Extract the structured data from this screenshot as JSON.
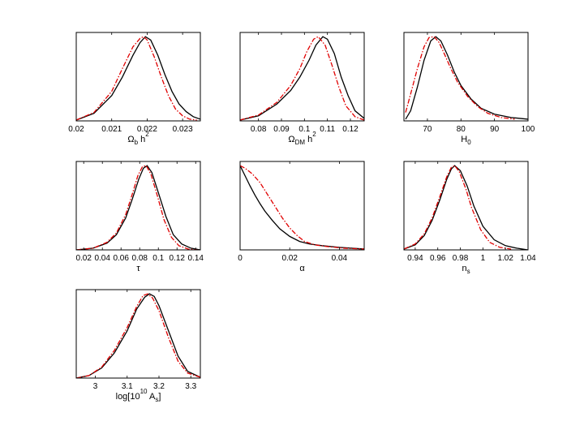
{
  "chart_data": [
    {
      "type": "line",
      "xlim": [
        0.02,
        0.0235
      ],
      "ylim": [
        0,
        1.05
      ],
      "xticks": [
        0.02,
        0.021,
        0.022,
        0.023
      ],
      "xtick_labels": [
        "0.02",
        "0.021",
        "0.022",
        "0.023"
      ],
      "xlabel_parts": [
        [
          "Ω",
          "n"
        ],
        [
          "b",
          "sub"
        ],
        [
          " h",
          "n"
        ],
        [
          "2",
          "sup"
        ]
      ],
      "series": [
        {
          "style": "solid",
          "color": "#000000",
          "x": [
            0.02,
            0.0205,
            0.021,
            0.0213,
            0.0216,
            0.0218,
            0.02195,
            0.0221,
            0.0223,
            0.0225,
            0.0227,
            0.0229,
            0.0231,
            0.0233,
            0.0235
          ],
          "y": [
            0.01,
            0.09,
            0.3,
            0.52,
            0.78,
            0.93,
            1.0,
            0.96,
            0.78,
            0.55,
            0.35,
            0.2,
            0.11,
            0.05,
            0.02
          ]
        },
        {
          "style": "dashdot",
          "color": "#e00000",
          "x": [
            0.02,
            0.0205,
            0.021,
            0.0213,
            0.0216,
            0.0218,
            0.0219,
            0.022,
            0.0222,
            0.0224,
            0.0226,
            0.0228,
            0.023,
            0.0232,
            0.0234
          ],
          "y": [
            0.01,
            0.1,
            0.35,
            0.62,
            0.88,
            0.98,
            1.0,
            0.96,
            0.76,
            0.52,
            0.3,
            0.14,
            0.06,
            0.02,
            0.01
          ]
        }
      ]
    },
    {
      "type": "line",
      "xlim": [
        0.072,
        0.126
      ],
      "ylim": [
        0,
        1.05
      ],
      "xticks": [
        0.08,
        0.09,
        0.1,
        0.11,
        0.12
      ],
      "xtick_labels": [
        "0.08",
        "0.09",
        "0.1",
        "0.11",
        "0.12"
      ],
      "xlabel_parts": [
        [
          "Ω",
          "n"
        ],
        [
          "DM",
          "sub"
        ],
        [
          " h",
          "n"
        ],
        [
          "2",
          "sup"
        ]
      ],
      "series": [
        {
          "style": "solid",
          "color": "#000000",
          "x": [
            0.072,
            0.08,
            0.088,
            0.094,
            0.098,
            0.102,
            0.105,
            0.108,
            0.11,
            0.113,
            0.116,
            0.119,
            0.122,
            0.126
          ],
          "y": [
            0.01,
            0.06,
            0.2,
            0.36,
            0.52,
            0.72,
            0.9,
            1.0,
            0.97,
            0.8,
            0.52,
            0.3,
            0.12,
            0.03
          ]
        },
        {
          "style": "dashdot",
          "color": "#e00000",
          "x": [
            0.072,
            0.08,
            0.088,
            0.094,
            0.098,
            0.101,
            0.104,
            0.106,
            0.109,
            0.112,
            0.115,
            0.118,
            0.122,
            0.126
          ],
          "y": [
            0.01,
            0.07,
            0.22,
            0.42,
            0.62,
            0.82,
            0.97,
            1.0,
            0.9,
            0.66,
            0.4,
            0.18,
            0.05,
            0.01
          ]
        }
      ]
    },
    {
      "type": "line",
      "xlim": [
        63,
        100
      ],
      "ylim": [
        0,
        1.05
      ],
      "xticks": [
        70,
        80,
        90,
        100
      ],
      "xtick_labels": [
        "70",
        "80",
        "90",
        "100"
      ],
      "xlabel_parts": [
        [
          "H",
          "n"
        ],
        [
          "0",
          "sub"
        ]
      ],
      "series": [
        {
          "style": "solid",
          "color": "#000000",
          "x": [
            63.5,
            65,
            67,
            69,
            71,
            72.5,
            74,
            76,
            78,
            80,
            83,
            86,
            90,
            95,
            100
          ],
          "y": [
            0.02,
            0.12,
            0.4,
            0.72,
            0.95,
            1.0,
            0.95,
            0.78,
            0.58,
            0.42,
            0.26,
            0.15,
            0.08,
            0.04,
            0.02
          ]
        },
        {
          "style": "dashdot",
          "color": "#e00000",
          "x": [
            63.5,
            65,
            67,
            69,
            70.5,
            72,
            73.5,
            75,
            77,
            79,
            82,
            85,
            88,
            92,
            96
          ],
          "y": [
            0.1,
            0.32,
            0.62,
            0.88,
            0.99,
            1.0,
            0.93,
            0.8,
            0.62,
            0.46,
            0.29,
            0.17,
            0.09,
            0.04,
            0.02
          ]
        }
      ]
    },
    {
      "type": "line",
      "xlim": [
        0.012,
        0.145
      ],
      "ylim": [
        0,
        1.05
      ],
      "xticks": [
        0.02,
        0.04,
        0.06,
        0.08,
        0.1,
        0.12,
        0.14
      ],
      "xtick_labels": [
        "0.02",
        "0.04",
        "0.06",
        "0.08",
        "0.1",
        "0.12",
        "0.14"
      ],
      "xlabel_parts": [
        [
          "τ",
          "n"
        ]
      ],
      "series": [
        {
          "style": "solid",
          "color": "#000000",
          "x": [
            0.012,
            0.03,
            0.045,
            0.055,
            0.065,
            0.072,
            0.079,
            0.084,
            0.088,
            0.093,
            0.1,
            0.108,
            0.116,
            0.125,
            0.135,
            0.145
          ],
          "y": [
            0.0,
            0.02,
            0.08,
            0.18,
            0.38,
            0.6,
            0.84,
            0.97,
            1.0,
            0.92,
            0.68,
            0.4,
            0.18,
            0.07,
            0.02,
            0.0
          ]
        },
        {
          "style": "dashdot",
          "color": "#e00000",
          "x": [
            0.012,
            0.03,
            0.045,
            0.055,
            0.065,
            0.072,
            0.078,
            0.083,
            0.087,
            0.092,
            0.099,
            0.106,
            0.114,
            0.122,
            0.132,
            0.142
          ],
          "y": [
            0.0,
            0.02,
            0.09,
            0.2,
            0.42,
            0.66,
            0.88,
            0.99,
            1.0,
            0.9,
            0.64,
            0.36,
            0.15,
            0.05,
            0.01,
            0.0
          ]
        }
      ]
    },
    {
      "type": "line",
      "xlim": [
        0,
        0.05
      ],
      "ylim": [
        0,
        1.05
      ],
      "xticks": [
        0,
        0.02,
        0.04
      ],
      "xtick_labels": [
        "0",
        "0.02",
        "0.04"
      ],
      "xlabel_parts": [
        [
          "α",
          "n"
        ]
      ],
      "series": [
        {
          "style": "solid",
          "color": "#000000",
          "x": [
            0,
            0.002,
            0.004,
            0.006,
            0.008,
            0.01,
            0.013,
            0.016,
            0.02,
            0.024,
            0.028,
            0.033,
            0.04,
            0.05
          ],
          "y": [
            1.0,
            0.88,
            0.76,
            0.65,
            0.55,
            0.46,
            0.35,
            0.25,
            0.16,
            0.1,
            0.07,
            0.05,
            0.03,
            0.01
          ]
        },
        {
          "style": "dashdot",
          "color": "#e00000",
          "x": [
            0,
            0.002,
            0.005,
            0.008,
            0.011,
            0.014,
            0.017,
            0.02,
            0.023,
            0.026,
            0.03,
            0.035,
            0.042,
            0.05
          ],
          "y": [
            1.0,
            0.97,
            0.9,
            0.8,
            0.66,
            0.52,
            0.38,
            0.26,
            0.17,
            0.1,
            0.06,
            0.04,
            0.02,
            0.01
          ]
        }
      ]
    },
    {
      "type": "line",
      "xlim": [
        0.93,
        1.04
      ],
      "ylim": [
        0,
        1.05
      ],
      "xticks": [
        0.94,
        0.96,
        0.98,
        1.0,
        1.02,
        1.04
      ],
      "xtick_labels": [
        "0.94",
        "0.96",
        "0.98",
        "1",
        "1.02",
        "1.04"
      ],
      "xlabel_parts": [
        [
          "n",
          "n"
        ],
        [
          "s",
          "sub"
        ]
      ],
      "series": [
        {
          "style": "solid",
          "color": "#000000",
          "x": [
            0.93,
            0.94,
            0.948,
            0.955,
            0.962,
            0.968,
            0.972,
            0.975,
            0.98,
            0.986,
            0.992,
            1.0,
            1.01,
            1.02,
            1.03,
            1.04
          ],
          "y": [
            0.01,
            0.06,
            0.17,
            0.35,
            0.6,
            0.84,
            0.96,
            1.0,
            0.94,
            0.76,
            0.52,
            0.28,
            0.12,
            0.05,
            0.02,
            0.0
          ]
        },
        {
          "style": "dashdot",
          "color": "#e00000",
          "x": [
            0.93,
            0.94,
            0.948,
            0.955,
            0.962,
            0.968,
            0.972,
            0.975,
            0.979,
            0.985,
            0.99,
            0.998,
            1.006,
            1.015,
            1.025
          ],
          "y": [
            0.01,
            0.07,
            0.19,
            0.38,
            0.64,
            0.87,
            0.98,
            1.0,
            0.93,
            0.72,
            0.5,
            0.24,
            0.09,
            0.03,
            0.01
          ]
        }
      ]
    },
    {
      "type": "line",
      "xlim": [
        2.94,
        3.33
      ],
      "ylim": [
        0,
        1.05
      ],
      "xticks": [
        3.0,
        3.1,
        3.2,
        3.3
      ],
      "xtick_labels": [
        "3",
        "3.1",
        "3.2",
        "3.3"
      ],
      "xlabel_parts": [
        [
          "log[10",
          "n"
        ],
        [
          "10",
          "sup"
        ],
        [
          " A",
          "n"
        ],
        [
          "s",
          "sub"
        ],
        [
          "]",
          "n"
        ]
      ],
      "series": [
        {
          "style": "solid",
          "color": "#000000",
          "x": [
            2.94,
            2.98,
            3.02,
            3.06,
            3.1,
            3.13,
            3.155,
            3.17,
            3.185,
            3.2,
            3.23,
            3.26,
            3.29,
            3.33
          ],
          "y": [
            0.0,
            0.03,
            0.12,
            0.3,
            0.56,
            0.82,
            0.96,
            1.0,
            0.97,
            0.86,
            0.56,
            0.26,
            0.08,
            0.01
          ]
        },
        {
          "style": "dashdot",
          "color": "#e00000",
          "x": [
            2.94,
            2.98,
            3.02,
            3.06,
            3.1,
            3.13,
            3.15,
            3.165,
            3.18,
            3.2,
            3.23,
            3.26,
            3.29,
            3.33
          ],
          "y": [
            0.0,
            0.03,
            0.13,
            0.33,
            0.6,
            0.85,
            0.98,
            1.0,
            0.95,
            0.8,
            0.48,
            0.2,
            0.06,
            0.01
          ]
        }
      ]
    }
  ]
}
